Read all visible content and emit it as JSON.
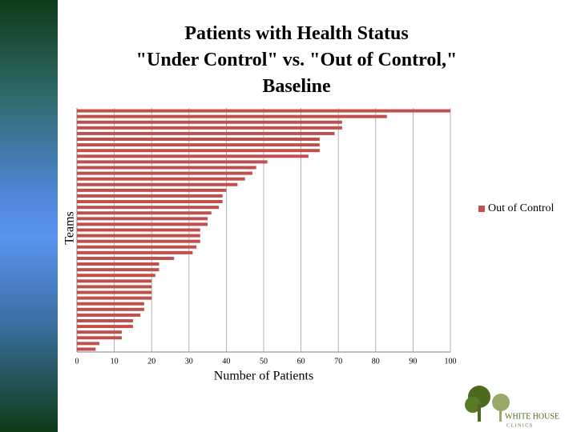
{
  "chart_data": {
    "type": "bar",
    "orientation": "horizontal",
    "title": "Patients with Health Status\n\"Under Control\" vs. \"Out of Control,\"\nBaseline",
    "x_label": "Number of Patients",
    "y_label": "Teams",
    "categories": [
      null,
      null,
      null,
      null,
      null,
      null,
      null,
      null,
      null,
      null,
      null,
      null,
      null,
      null,
      null,
      null,
      null,
      null,
      null,
      null,
      null,
      null,
      null,
      null,
      null,
      null,
      null,
      null,
      null,
      null,
      null,
      null,
      null,
      null,
      null,
      null,
      null,
      null,
      null,
      null,
      null,
      null,
      null
    ],
    "series": [
      {
        "name": "Out of Control",
        "color": "#c0504d",
        "values": [
          100,
          83,
          71,
          71,
          69,
          65,
          65,
          65,
          62,
          51,
          48,
          47,
          45,
          43,
          40,
          39,
          39,
          38,
          36,
          35,
          35,
          33,
          33,
          33,
          32,
          31,
          26,
          22,
          22,
          21,
          20,
          20,
          20,
          20,
          18,
          18,
          17,
          15,
          15,
          12,
          12,
          6,
          5
        ]
      }
    ],
    "xlim": [
      0,
      100
    ],
    "xticks": [
      0,
      10,
      20,
      30,
      40,
      50,
      60,
      70,
      80,
      90,
      100
    ],
    "grid": true,
    "legend": "right"
  },
  "logo": {
    "text": "WHITE HOUSE",
    "subtext": "C L I N I C S"
  }
}
